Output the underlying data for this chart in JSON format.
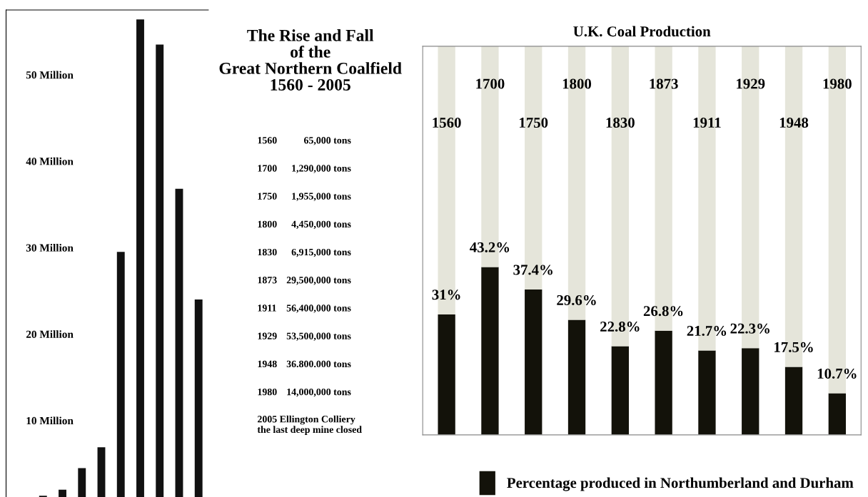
{
  "chart_data": [
    {
      "type": "bar",
      "categories": [
        null,
        null,
        null,
        null,
        null,
        null,
        null,
        null,
        null,
        null
      ],
      "values": [
        0.1,
        1.3,
        2,
        4.5,
        6.9,
        29.5,
        56.4,
        53.5,
        36.8,
        24
      ],
      "color": "#111111",
      "ylim": [
        0,
        57.5
      ],
      "yticks": [
        {
          "value": 10,
          "label": "10 Million"
        },
        {
          "value": 20,
          "label": "20 Million"
        },
        {
          "value": 30,
          "label": "30 Million"
        },
        {
          "value": 40,
          "label": "40 Million"
        },
        {
          "value": 50,
          "label": "50 Million"
        }
      ],
      "tick_labels": "y",
      "grid": false
    },
    {
      "type": "other",
      "title": "The Rise and Fall\nof the\nGreat Northern Coalfield\n1560 - 2005",
      "annotations": [
        "1560 65,000 tons",
        "1700 1,290,000 tons",
        "1750 1,955,000 tons",
        "1800 4,450,000 tons",
        "1830 6,915,000 tons",
        "1873 29,500,000 tons",
        "1911 56,400,000 tons",
        "1929 53,500,000 tons",
        "1948 36.800.000 tons",
        "1980 14,000,000 tons",
        "2005 Ellington Colliery\nthe last deep mine closed"
      ]
    },
    {
      "type": "bar",
      "title": "U.K. Coal Production",
      "stacked": true,
      "categories": [
        "1560",
        "1700",
        "1750",
        "1800",
        "1830",
        "1873",
        "1911",
        "1929",
        "1948",
        "1980"
      ],
      "series": [
        {
          "name": "Percentage produced in Northumberland and Durham",
          "color": "#13120a",
          "values": [
            31,
            43.2,
            37.4,
            29.6,
            22.8,
            26.8,
            21.7,
            22.3,
            17.5,
            10.7
          ],
          "value_labels": [
            "31%",
            "43.2%",
            "37.4%",
            "29.6%",
            "22.8%",
            "26.8%",
            "21.7%",
            "22.3%",
            "17.5%",
            "10.7%"
          ]
        },
        {
          "color": "#e5e5da",
          "values": [
            69,
            56.8,
            62.6,
            70.4,
            77.2,
            73.2,
            78.3,
            77.7,
            82.5,
            89.3
          ]
        }
      ],
      "ylim": [
        0,
        100
      ],
      "tick_labels": false,
      "legend": "bottom",
      "grid": false
    }
  ]
}
